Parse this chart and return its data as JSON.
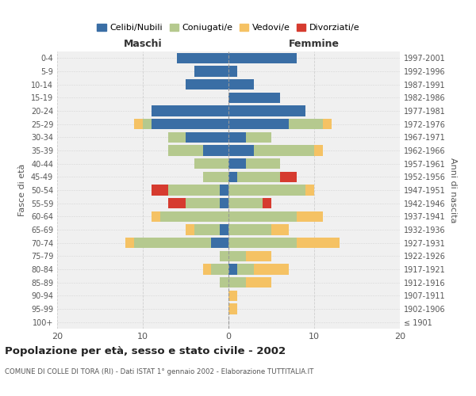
{
  "age_groups": [
    "100+",
    "95-99",
    "90-94",
    "85-89",
    "80-84",
    "75-79",
    "70-74",
    "65-69",
    "60-64",
    "55-59",
    "50-54",
    "45-49",
    "40-44",
    "35-39",
    "30-34",
    "25-29",
    "20-24",
    "15-19",
    "10-14",
    "5-9",
    "0-4"
  ],
  "birth_years": [
    "≤ 1901",
    "1902-1906",
    "1907-1911",
    "1912-1916",
    "1917-1921",
    "1922-1926",
    "1927-1931",
    "1932-1936",
    "1937-1941",
    "1942-1946",
    "1947-1951",
    "1952-1956",
    "1957-1961",
    "1962-1966",
    "1967-1971",
    "1972-1976",
    "1977-1981",
    "1982-1986",
    "1987-1991",
    "1992-1996",
    "1997-2001"
  ],
  "maschi": {
    "celibi": [
      0,
      0,
      0,
      0,
      0,
      0,
      2,
      1,
      0,
      1,
      1,
      0,
      0,
      3,
      5,
      9,
      9,
      0,
      5,
      4,
      6
    ],
    "coniugati": [
      0,
      0,
      0,
      1,
      2,
      1,
      9,
      3,
      8,
      4,
      6,
      3,
      4,
      4,
      2,
      1,
      0,
      0,
      0,
      0,
      0
    ],
    "vedovi": [
      0,
      0,
      0,
      0,
      1,
      0,
      1,
      1,
      1,
      0,
      0,
      0,
      0,
      0,
      0,
      1,
      0,
      0,
      0,
      0,
      0
    ],
    "divorziati": [
      0,
      0,
      0,
      0,
      0,
      0,
      0,
      0,
      0,
      2,
      2,
      0,
      0,
      0,
      0,
      0,
      0,
      0,
      0,
      0,
      0
    ]
  },
  "femmine": {
    "nubili": [
      0,
      0,
      0,
      0,
      1,
      0,
      0,
      0,
      0,
      0,
      0,
      1,
      2,
      3,
      2,
      7,
      9,
      6,
      3,
      1,
      8
    ],
    "coniugate": [
      0,
      0,
      0,
      2,
      2,
      2,
      8,
      5,
      8,
      4,
      9,
      5,
      4,
      7,
      3,
      4,
      0,
      0,
      0,
      0,
      0
    ],
    "vedove": [
      0,
      1,
      1,
      3,
      4,
      3,
      5,
      2,
      3,
      0,
      1,
      0,
      0,
      1,
      0,
      1,
      0,
      0,
      0,
      0,
      0
    ],
    "divorziate": [
      0,
      0,
      0,
      0,
      0,
      0,
      0,
      0,
      0,
      1,
      0,
      2,
      0,
      0,
      0,
      0,
      0,
      0,
      0,
      0,
      0
    ]
  },
  "colors": {
    "celibi": "#3a6ea5",
    "coniugati": "#b5c98e",
    "vedovi": "#f5c264",
    "divorziati": "#d63b2f"
  },
  "title": "Popolazione per età, sesso e stato civile - 2002",
  "subtitle": "COMUNE DI COLLE DI TORA (RI) - Dati ISTAT 1° gennaio 2002 - Elaborazione TUTTITALIA.IT",
  "xlabel_maschi": "Maschi",
  "xlabel_femmine": "Femmine",
  "ylabel_left": "Fasce di età",
  "ylabel_right": "Anni di nascita",
  "xlim": 20,
  "background_color": "#ffffff",
  "grid_color": "#cccccc",
  "legend_labels": [
    "Celibi/Nubili",
    "Coniugati/e",
    "Vedovi/e",
    "Divorziati/e"
  ]
}
